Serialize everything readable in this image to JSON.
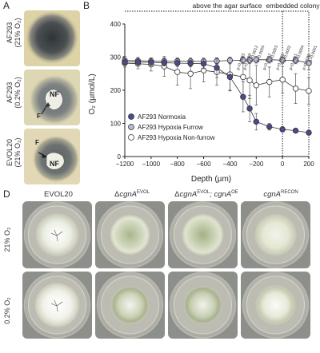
{
  "panel_labels": {
    "a": "A",
    "b": "B",
    "d": "D"
  },
  "panel_a": {
    "rows": [
      {
        "strain": "AF293",
        "condition": "(21% O₂)",
        "marks": []
      },
      {
        "strain": "AF293",
        "condition": "(0.2% O₂)",
        "marks": [
          "NF",
          "F"
        ]
      },
      {
        "strain": "EVOL20",
        "condition": "(21% O₂)",
        "marks": [
          "F",
          "NF"
        ]
      }
    ]
  },
  "panel_b": {
    "chart_data": {
      "type": "line",
      "xlabel": "Depth (µm)",
      "ylabel": "O₂ (µmol/L)",
      "xlim": [
        -1200,
        200
      ],
      "ylim": [
        0,
        400
      ],
      "x_ticks": [
        -1200,
        -1000,
        -800,
        -600,
        -400,
        -200,
        0,
        200
      ],
      "y_ticks": [
        0,
        100,
        200,
        300,
        400
      ],
      "region_labels": {
        "above": "above the agar surface",
        "embedded": "embedded colony"
      },
      "legend_position": "bottom-left",
      "x": [
        -1200,
        -1100,
        -1000,
        -900,
        -800,
        -700,
        -600,
        -500,
        -400,
        -300,
        -250,
        -200,
        -100,
        0,
        100,
        200
      ],
      "series": [
        {
          "name": "AF293 Normoxia",
          "color": "#4a4a8c",
          "values": [
            285,
            285,
            284,
            283,
            282,
            281,
            280,
            268,
            240,
            180,
            145,
            105,
            90,
            82,
            78,
            72
          ],
          "errors": [
            10,
            10,
            10,
            10,
            10,
            10,
            15,
            30,
            40,
            45,
            40,
            25,
            10,
            8,
            6,
            6
          ]
        },
        {
          "name": "AF293 Hypoxia Furrow",
          "color": "#b8b8d8",
          "values": [
            290,
            289,
            288,
            288,
            288,
            287,
            287,
            288,
            290,
            291,
            291,
            292,
            292,
            291,
            290,
            282
          ],
          "errors": [
            12,
            10,
            10,
            10,
            10,
            10,
            10,
            10,
            10,
            10,
            10,
            10,
            10,
            10,
            10,
            20
          ]
        },
        {
          "name": "AF293 Hypoxia Non-furrow",
          "color": "#ffffff",
          "values": [
            282,
            280,
            278,
            272,
            255,
            250,
            260,
            255,
            248,
            240,
            230,
            215,
            225,
            232,
            205,
            198
          ],
          "errors": [
            12,
            15,
            20,
            30,
            40,
            45,
            35,
            40,
            50,
            60,
            55,
            60,
            45,
            40,
            45,
            40
          ]
        }
      ],
      "p_values": [
        {
          "x": -300,
          "label": "p=0.0008"
        },
        {
          "x": -200,
          "label": "p=0.0004"
        },
        {
          "x": -350,
          "label": "p=0.0033"
        },
        {
          "x": -250,
          "label": "p=0.0012"
        },
        {
          "x": -150,
          "label": "p=0.0012"
        },
        {
          "x": -100,
          "label": "p=0.0003"
        },
        {
          "x": -50,
          "label": "p=0.0005"
        },
        {
          "x": 0,
          "label": "p=0.0002"
        },
        {
          "x": 50,
          "label": "p=0.0001"
        },
        {
          "x": 100,
          "label": "p=0.0004"
        },
        {
          "x": 150,
          "label": "p=0.0001"
        },
        {
          "x": 200,
          "label": "p=0.0001"
        }
      ]
    }
  },
  "panel_d": {
    "columns": [
      {
        "base": "EVOL20",
        "prefix": "",
        "sup": "",
        "extra": ""
      },
      {
        "base": "cgnA",
        "prefix": "Δ",
        "sup": "EVOL",
        "extra": ""
      },
      {
        "base": "cgnA",
        "prefix": "Δ",
        "sup": "EVOL",
        "extra": "; cgnA",
        "extra_sup": "OE"
      },
      {
        "base": "cgnA",
        "prefix": "",
        "sup": "RECON",
        "extra": ""
      }
    ],
    "rows": [
      "21% O₂",
      "0.2% O₂"
    ]
  }
}
